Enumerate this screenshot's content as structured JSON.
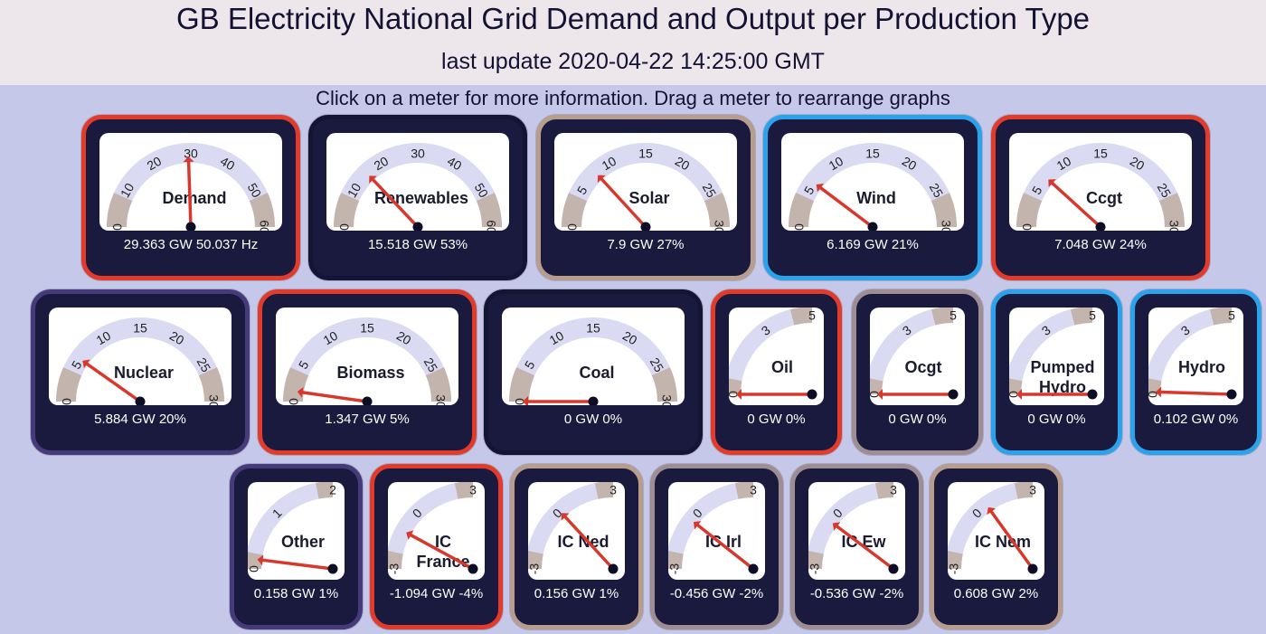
{
  "header": {
    "title": "GB Electricity National Grid Demand and Output per Production Type",
    "last_update": "last update 2020-04-22 14:25:00 GMT"
  },
  "instructions": "Click on a meter for more information. Drag a meter to rearrange graphs",
  "colors": {
    "needle": "#d8382c",
    "track": "#dadaf2",
    "track_segment": "#c3b5ad",
    "frame": "#1a1a3e",
    "background": "#c5c8e8",
    "header": "#ede6ea"
  },
  "meters": [
    {
      "label": "Demand",
      "reading": "29.363 GW 50.037 Hz",
      "ticks": [
        "0",
        "10",
        "20",
        "30",
        "40",
        "50",
        "60"
      ],
      "min": 0,
      "max": 60,
      "value": 29.363,
      "segments": [
        [
          0,
          8
        ],
        [
          52,
          60
        ]
      ]
    },
    {
      "label": "Renewables",
      "reading": "15.518 GW 53%",
      "ticks": [
        "0",
        "10",
        "20",
        "30",
        "40",
        "50",
        "60"
      ],
      "min": 0,
      "max": 60,
      "value": 15.518,
      "segments": [
        [
          0,
          8
        ],
        [
          52,
          60
        ]
      ]
    },
    {
      "label": "Solar",
      "reading": "7.9 GW 27%",
      "ticks": [
        "0",
        "5",
        "10",
        "15",
        "20",
        "25",
        "30"
      ],
      "min": 0,
      "max": 30,
      "value": 7.9,
      "segments": [
        [
          0,
          4
        ],
        [
          26,
          30
        ]
      ]
    },
    {
      "label": "Wind",
      "reading": "6.169 GW 21%",
      "ticks": [
        "0",
        "5",
        "10",
        "15",
        "20",
        "25",
        "30"
      ],
      "min": 0,
      "max": 30,
      "value": 6.169,
      "segments": [
        [
          0,
          4
        ],
        [
          26,
          30
        ]
      ]
    },
    {
      "label": "Ccgt",
      "reading": "7.048 GW 24%",
      "ticks": [
        "0",
        "5",
        "10",
        "15",
        "20",
        "25",
        "30"
      ],
      "min": 0,
      "max": 30,
      "value": 7.048,
      "segments": [
        [
          0,
          4
        ],
        [
          26,
          30
        ]
      ]
    },
    {
      "label": "Nuclear",
      "reading": "5.884 GW 20%",
      "ticks": [
        "0",
        "5",
        "10",
        "15",
        "20",
        "25",
        "30"
      ],
      "min": 0,
      "max": 30,
      "value": 5.884,
      "segments": [
        [
          0,
          4
        ],
        [
          26,
          30
        ]
      ]
    },
    {
      "label": "Biomass",
      "reading": "1.347 GW 5%",
      "ticks": [
        "0",
        "5",
        "10",
        "15",
        "20",
        "25",
        "30"
      ],
      "min": 0,
      "max": 30,
      "value": 1.347,
      "segments": [
        [
          0,
          4
        ],
        [
          26,
          30
        ]
      ]
    },
    {
      "label": "Coal",
      "reading": "0 GW 0%",
      "ticks": [
        "0",
        "5",
        "10",
        "15",
        "20",
        "25",
        "30"
      ],
      "min": 0,
      "max": 30,
      "value": 0,
      "segments": [
        [
          0,
          4
        ],
        [
          26,
          30
        ]
      ]
    },
    {
      "label": "Oil",
      "reading": "0 GW 0%",
      "ticks": [
        "0",
        "3",
        "5"
      ],
      "min": 0,
      "max": 5,
      "value": 0,
      "segments": [
        [
          0,
          0.6
        ],
        [
          4.2,
          5
        ]
      ]
    },
    {
      "label": "Ocgt",
      "reading": "0 GW 0%",
      "ticks": [
        "0",
        "3",
        "5"
      ],
      "min": 0,
      "max": 5,
      "value": 0,
      "segments": [
        [
          0,
          0.6
        ],
        [
          4.2,
          5
        ]
      ]
    },
    {
      "label": "Pumped Hydro",
      "reading": "0 GW 0%",
      "ticks": [
        "0",
        "3",
        "5"
      ],
      "min": 0,
      "max": 5,
      "value": 0,
      "segments": [
        [
          0,
          0.6
        ],
        [
          4.2,
          5
        ]
      ]
    },
    {
      "label": "Hydro",
      "reading": "0.102 GW 0%",
      "ticks": [
        "0",
        "3",
        "5"
      ],
      "min": 0,
      "max": 5,
      "value": 0.102,
      "segments": [
        [
          0,
          0.6
        ],
        [
          4.2,
          5
        ]
      ]
    },
    {
      "label": "Other",
      "reading": "0.158 GW 1%",
      "ticks": [
        "0",
        "1",
        "2"
      ],
      "min": 0,
      "max": 2,
      "value": 0.158,
      "segments": [
        [
          0,
          0.25
        ],
        [
          1.75,
          2
        ]
      ]
    },
    {
      "label": "IC France",
      "reading": "-1.094 GW -4%",
      "ticks": [
        "-3",
        "0",
        "3"
      ],
      "min": -3,
      "max": 3,
      "value": -1.094,
      "segments": [
        [
          -3,
          -2.2
        ],
        [
          2.2,
          3
        ]
      ]
    },
    {
      "label": "IC Ned",
      "reading": "0.156 GW 1%",
      "ticks": [
        "-3",
        "0",
        "3"
      ],
      "min": -3,
      "max": 3,
      "value": 0.156,
      "segments": [
        [
          -3,
          -2.2
        ],
        [
          2.2,
          3
        ]
      ]
    },
    {
      "label": "IC Irl",
      "reading": "-0.456 GW -2%",
      "ticks": [
        "-3",
        "0",
        "3"
      ],
      "min": -3,
      "max": 3,
      "value": -0.456,
      "segments": [
        [
          -3,
          -2.2
        ],
        [
          2.2,
          3
        ]
      ]
    },
    {
      "label": "IC Ew",
      "reading": "-0.536 GW -2%",
      "ticks": [
        "-3",
        "0",
        "3"
      ],
      "min": -3,
      "max": 3,
      "value": -0.536,
      "segments": [
        [
          -3,
          -2.2
        ],
        [
          2.2,
          3
        ]
      ]
    },
    {
      "label": "IC Nem",
      "reading": "0.608 GW 2%",
      "ticks": [
        "-3",
        "0",
        "3"
      ],
      "min": -3,
      "max": 3,
      "value": 0.608,
      "segments": [
        [
          -3,
          -2.2
        ],
        [
          2.2,
          3
        ]
      ]
    }
  ]
}
